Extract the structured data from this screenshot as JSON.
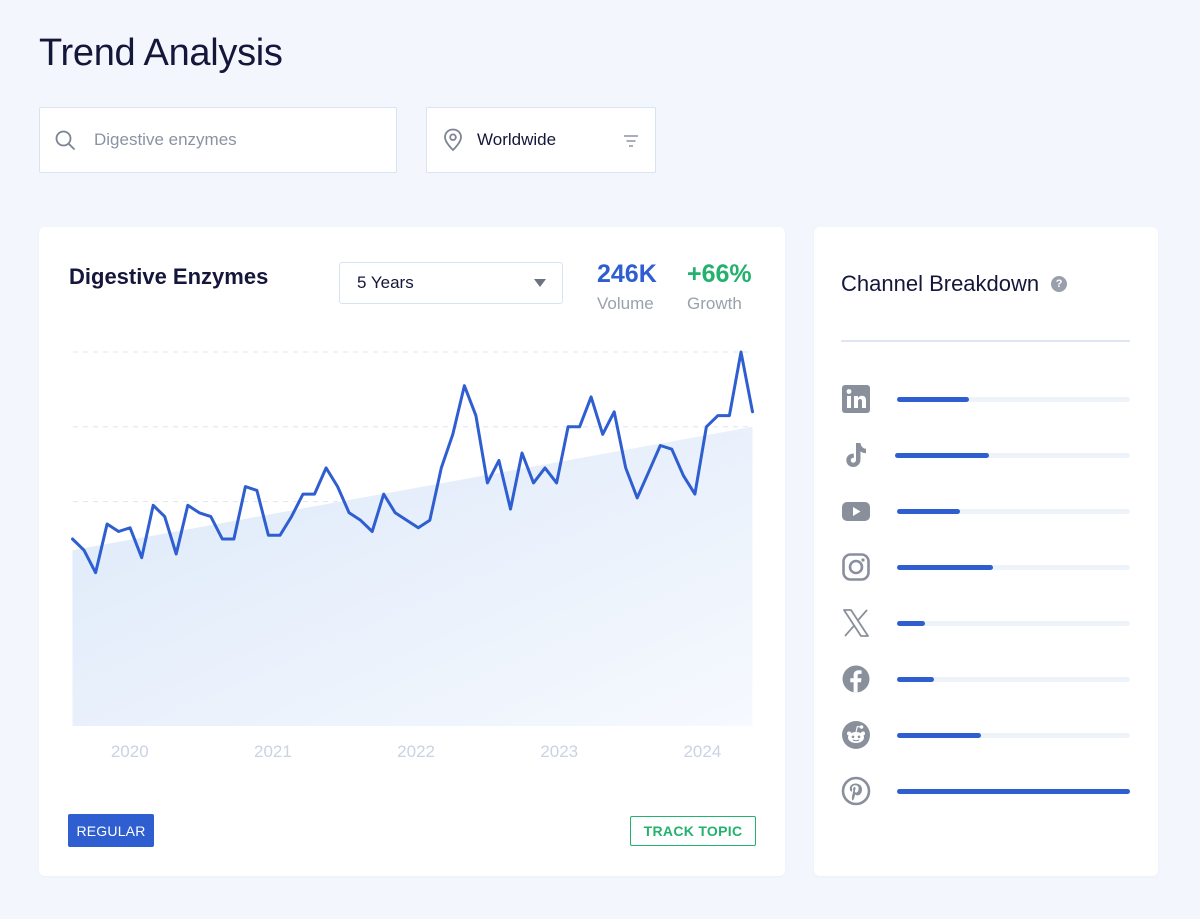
{
  "page": {
    "title": "Trend Analysis"
  },
  "search": {
    "placeholder": "Digestive enzymes",
    "value": ""
  },
  "location": {
    "label": "Worldwide"
  },
  "trend_card": {
    "title": "Digestive Enzymes",
    "range": "5 Years",
    "volume": {
      "value": "246K",
      "label": "Volume"
    },
    "growth": {
      "value": "+66%",
      "label": "Growth"
    },
    "buttons": {
      "regular": "REGULAR",
      "track": "TRACK TOPIC"
    }
  },
  "channels": {
    "title": "Channel Breakdown",
    "help": "?",
    "items": [
      {
        "icon": "linkedin-icon",
        "level": 0.31
      },
      {
        "icon": "tiktok-icon",
        "level": 0.4
      },
      {
        "icon": "youtube-icon",
        "level": 0.27
      },
      {
        "icon": "instagram-icon",
        "level": 0.41
      },
      {
        "icon": "x-icon",
        "level": 0.12
      },
      {
        "icon": "facebook-icon",
        "level": 0.16
      },
      {
        "icon": "reddit-icon",
        "level": 0.36
      },
      {
        "icon": "pinterest-icon",
        "level": 1.0
      }
    ]
  },
  "colors": {
    "accent": "#2f5ed1",
    "growth": "#23b26d",
    "background": "#f3f7fd"
  },
  "chart_data": {
    "type": "line",
    "x_tick_labels": [
      "2020",
      "2021",
      "2022",
      "2023",
      "2024"
    ],
    "x_start": 2019.6,
    "x_end": 2024.35,
    "ylim": [
      0,
      100
    ],
    "grid": true,
    "series": [
      {
        "values": [
          50,
          47,
          41,
          54,
          52,
          53,
          45,
          59,
          56,
          46,
          59,
          57,
          56,
          50,
          50,
          64,
          63,
          51,
          51,
          56,
          62,
          62,
          69,
          64,
          57,
          55,
          52,
          62,
          57,
          55,
          53,
          55,
          69,
          78,
          91,
          83,
          65,
          71,
          58,
          73,
          65,
          69,
          65,
          80,
          80,
          88,
          78,
          84,
          69,
          61,
          68,
          75,
          74,
          67,
          62,
          80,
          83,
          83,
          100,
          84
        ]
      },
      {
        "type": "trend",
        "values": [
          47,
          80
        ]
      }
    ]
  }
}
